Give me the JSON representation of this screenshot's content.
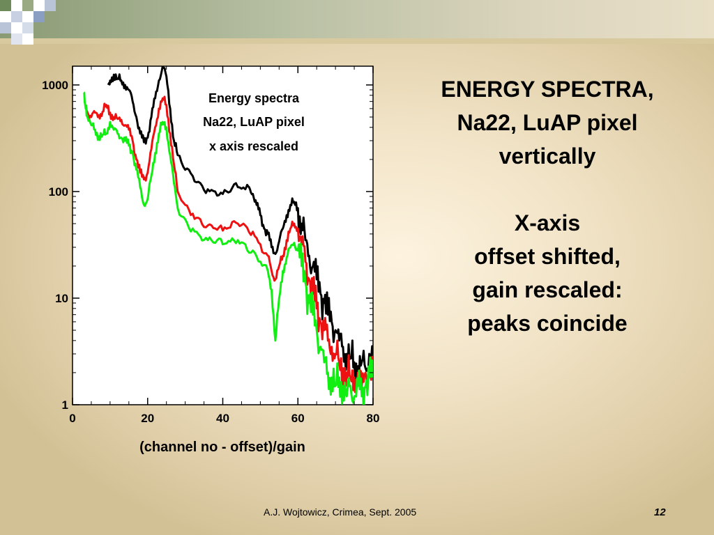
{
  "slide": {
    "heading_lines": [
      "ENERGY SPECTRA,",
      "Na22, LuAP pixel",
      "vertically"
    ],
    "note_lines": [
      "X-axis",
      "offset shifted,",
      "gain rescaled:",
      "peaks coincide"
    ],
    "footer": "A.J. Wojtowicz, Crimea, Sept. 2005",
    "page_number": "12"
  },
  "chart_data": {
    "type": "line",
    "title_lines": [
      "Energy spectra",
      "Na22, LuAP pixel",
      "x axis rescaled"
    ],
    "xlabel": "(channel no - offset)/gain",
    "ylabel": "",
    "xlim": [
      0,
      80
    ],
    "ylim": [
      1,
      1500
    ],
    "yscale": "log",
    "x_ticks": [
      "0",
      "20",
      "40",
      "60",
      "80"
    ],
    "y_ticks": [
      "1",
      "10",
      "100",
      "1000"
    ],
    "grid": false,
    "colors": {
      "black": "#000000",
      "red": "#ee1111",
      "green": "#11ee11"
    },
    "series": [
      {
        "color": "black",
        "points": [
          [
            9.5,
            1000
          ],
          [
            10,
            1100
          ],
          [
            11,
            1250
          ],
          [
            12,
            1150
          ],
          [
            13,
            1100
          ],
          [
            14,
            1000
          ],
          [
            15,
            900
          ],
          [
            16,
            700
          ],
          [
            17,
            500
          ],
          [
            18,
            350
          ],
          [
            19,
            290
          ],
          [
            20,
            320
          ],
          [
            21,
            500
          ],
          [
            22,
            750
          ],
          [
            23,
            1100
          ],
          [
            24,
            1500
          ],
          [
            25,
            1200
          ],
          [
            26,
            600
          ],
          [
            27,
            300
          ],
          [
            28,
            220
          ],
          [
            30,
            160
          ],
          [
            32,
            140
          ],
          [
            34,
            120
          ],
          [
            36,
            105
          ],
          [
            38,
            100
          ],
          [
            40,
            95
          ],
          [
            42,
            100
          ],
          [
            44,
            110
          ],
          [
            46,
            105
          ],
          [
            47,
            110
          ],
          [
            48,
            95
          ],
          [
            49,
            75
          ],
          [
            50,
            60
          ],
          [
            51,
            45
          ],
          [
            52,
            40
          ],
          [
            53,
            30
          ],
          [
            54,
            26
          ],
          [
            55,
            34
          ],
          [
            56,
            45
          ],
          [
            57,
            60
          ],
          [
            58,
            75
          ],
          [
            59,
            80
          ],
          [
            60,
            70
          ],
          [
            61,
            50
          ],
          [
            62,
            35
          ],
          [
            63,
            25
          ],
          [
            64,
            20
          ],
          [
            65,
            15
          ],
          [
            66,
            11
          ],
          [
            67,
            9
          ],
          [
            68,
            7
          ],
          [
            69,
            6
          ],
          [
            70,
            5
          ],
          [
            71,
            4
          ],
          [
            72,
            3.5
          ],
          [
            73,
            3
          ],
          [
            74,
            2.8
          ],
          [
            75,
            2.5
          ],
          [
            76,
            2.3
          ],
          [
            77,
            2.5
          ],
          [
            78,
            2.2
          ],
          [
            79,
            3
          ],
          [
            80,
            3
          ]
        ]
      },
      {
        "color": "red",
        "points": [
          [
            3.5,
            600
          ],
          [
            4,
            550
          ],
          [
            5,
            500
          ],
          [
            6,
            550
          ],
          [
            7,
            520
          ],
          [
            8,
            560
          ],
          [
            9,
            650
          ],
          [
            10,
            550
          ],
          [
            11,
            500
          ],
          [
            12,
            480
          ],
          [
            13,
            470
          ],
          [
            14,
            420
          ],
          [
            15,
            380
          ],
          [
            16,
            300
          ],
          [
            17,
            200
          ],
          [
            18,
            150
          ],
          [
            19,
            130
          ],
          [
            20,
            150
          ],
          [
            21,
            250
          ],
          [
            22,
            400
          ],
          [
            23,
            600
          ],
          [
            24,
            750
          ],
          [
            25,
            650
          ],
          [
            26,
            350
          ],
          [
            27,
            180
          ],
          [
            28,
            100
          ],
          [
            30,
            75
          ],
          [
            32,
            62
          ],
          [
            34,
            55
          ],
          [
            36,
            48
          ],
          [
            38,
            45
          ],
          [
            40,
            43
          ],
          [
            42,
            46
          ],
          [
            44,
            50
          ],
          [
            46,
            48
          ],
          [
            48,
            42
          ],
          [
            50,
            32
          ],
          [
            52,
            25
          ],
          [
            53,
            18
          ],
          [
            54,
            15
          ],
          [
            55,
            20
          ],
          [
            56,
            25
          ],
          [
            57,
            35
          ],
          [
            58,
            45
          ],
          [
            59,
            50
          ],
          [
            60,
            45
          ],
          [
            61,
            32
          ],
          [
            62,
            22
          ],
          [
            63,
            15
          ],
          [
            64,
            11
          ],
          [
            65,
            8
          ],
          [
            66,
            6
          ],
          [
            67,
            5
          ],
          [
            68,
            4
          ],
          [
            69,
            3.5
          ],
          [
            70,
            3
          ],
          [
            71,
            2.5
          ],
          [
            72,
            2.2
          ],
          [
            73,
            2
          ],
          [
            74,
            1.8
          ],
          [
            75,
            1.8
          ],
          [
            76,
            2
          ],
          [
            77,
            1.5
          ],
          [
            78,
            2
          ],
          [
            79,
            1.8
          ],
          [
            80,
            1.8
          ]
        ]
      },
      {
        "color": "green",
        "points": [
          [
            3,
            850
          ],
          [
            3.5,
            600
          ],
          [
            4,
            500
          ],
          [
            5,
            420
          ],
          [
            6,
            380
          ],
          [
            7,
            330
          ],
          [
            8,
            340
          ],
          [
            9,
            350
          ],
          [
            10,
            450
          ],
          [
            11,
            380
          ],
          [
            12,
            350
          ],
          [
            13,
            320
          ],
          [
            14,
            300
          ],
          [
            15,
            270
          ],
          [
            16,
            230
          ],
          [
            17,
            160
          ],
          [
            18,
            110
          ],
          [
            19,
            75
          ],
          [
            20,
            85
          ],
          [
            21,
            140
          ],
          [
            22,
            230
          ],
          [
            23,
            350
          ],
          [
            24,
            450
          ],
          [
            25,
            400
          ],
          [
            26,
            220
          ],
          [
            27,
            120
          ],
          [
            28,
            70
          ],
          [
            30,
            55
          ],
          [
            32,
            45
          ],
          [
            34,
            38
          ],
          [
            36,
            35
          ],
          [
            38,
            33
          ],
          [
            40,
            32
          ],
          [
            42,
            34
          ],
          [
            44,
            35
          ],
          [
            46,
            32
          ],
          [
            48,
            28
          ],
          [
            50,
            22
          ],
          [
            52,
            18
          ],
          [
            53,
            12
          ],
          [
            54,
            4
          ],
          [
            55,
            10
          ],
          [
            56,
            18
          ],
          [
            57,
            24
          ],
          [
            58,
            30
          ],
          [
            59,
            33
          ],
          [
            60,
            28
          ],
          [
            61,
            20
          ],
          [
            62,
            14
          ],
          [
            63,
            9
          ],
          [
            64,
            7
          ],
          [
            65,
            5
          ],
          [
            66,
            3.5
          ],
          [
            67,
            2.5
          ],
          [
            68,
            2
          ],
          [
            69,
            1.8
          ],
          [
            70,
            1.5
          ],
          [
            71,
            1.8
          ],
          [
            72,
            1.5
          ],
          [
            73,
            1.2
          ],
          [
            74,
            1.5
          ],
          [
            75,
            1.2
          ],
          [
            76,
            1.5
          ],
          [
            77,
            1.2
          ],
          [
            78,
            1.5
          ],
          [
            79,
            1.8
          ],
          [
            80,
            1.8
          ]
        ]
      }
    ]
  }
}
